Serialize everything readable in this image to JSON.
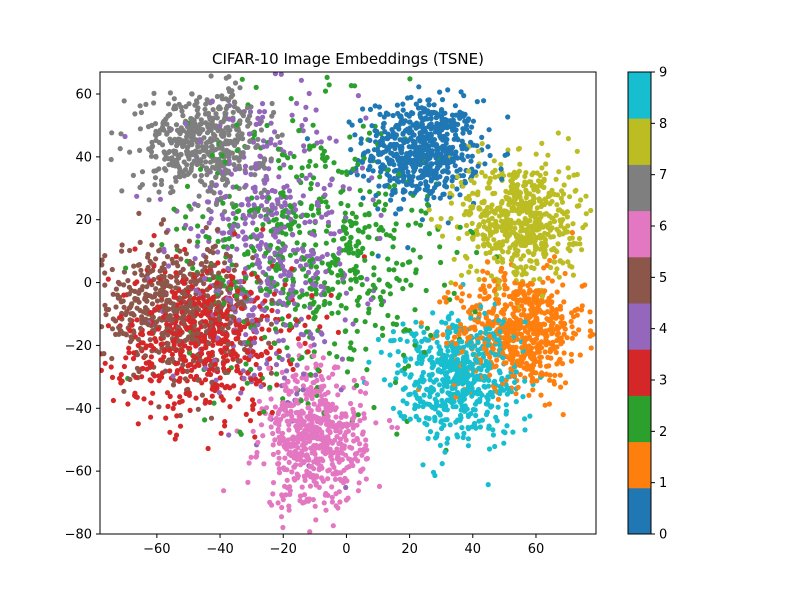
{
  "chart_data": {
    "type": "scatter",
    "title": "CIFAR-10 Image Embeddings (TSNE)",
    "xlabel": "",
    "ylabel": "",
    "xlim": [
      -78,
      79
    ],
    "ylim": [
      -80,
      67
    ],
    "xticks": [
      -60,
      -40,
      -20,
      0,
      20,
      40,
      60
    ],
    "yticks": [
      -80,
      -60,
      -40,
      -20,
      0,
      20,
      40,
      60
    ],
    "grid": false,
    "colormap": "tab10",
    "colorbar": {
      "ticks": [
        0,
        1,
        2,
        3,
        4,
        5,
        6,
        7,
        8,
        9
      ],
      "colors": [
        "#1f77b4",
        "#ff7f0e",
        "#2ca02c",
        "#d62728",
        "#9467bd",
        "#8c564b",
        "#e377c2",
        "#7f7f7f",
        "#bcbd22",
        "#17becf"
      ]
    },
    "clusters": [
      {
        "label": 0,
        "center": [
          24,
          42
        ],
        "spread": [
          9,
          8
        ],
        "count": 650
      },
      {
        "label": 1,
        "center": [
          55,
          -15
        ],
        "spread": [
          10,
          9
        ],
        "count": 650
      },
      {
        "label": 2,
        "center": [
          -10,
          10
        ],
        "spread": [
          20,
          22
        ],
        "count": 600
      },
      {
        "label": 3,
        "center": [
          -45,
          -18
        ],
        "spread": [
          14,
          12
        ],
        "count": 600
      },
      {
        "label": 4,
        "center": [
          -25,
          10
        ],
        "spread": [
          15,
          22
        ],
        "count": 500
      },
      {
        "label": 5,
        "center": [
          -55,
          -8
        ],
        "spread": [
          12,
          10
        ],
        "count": 550
      },
      {
        "label": 6,
        "center": [
          -10,
          -50
        ],
        "spread": [
          8,
          11
        ],
        "count": 600
      },
      {
        "label": 7,
        "center": [
          -45,
          45
        ],
        "spread": [
          10,
          8
        ],
        "count": 500
      },
      {
        "label": 8,
        "center": [
          55,
          20
        ],
        "spread": [
          9,
          10
        ],
        "count": 600
      },
      {
        "label": 9,
        "center": [
          35,
          -30
        ],
        "spread": [
          10,
          10
        ],
        "count": 600
      }
    ]
  }
}
